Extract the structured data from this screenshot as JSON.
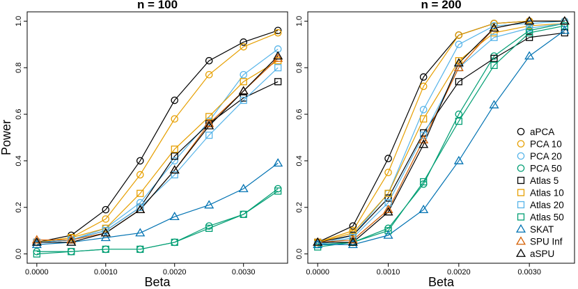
{
  "chart_data": [
    {
      "type": "line",
      "title": "n = 100",
      "xlabel": "Beta",
      "ylabel": "Power",
      "xlim": [
        0,
        0.0035
      ],
      "ylim": [
        0,
        1
      ],
      "x": [
        0,
        0.0005,
        0.001,
        0.0015,
        0.002,
        0.0025,
        0.003,
        0.0035
      ],
      "xtick_values": [
        0,
        0.001,
        0.002,
        0.003
      ],
      "xtick_labels": [
        "0.0000",
        "0.0010",
        "0.0020",
        "0.0030"
      ],
      "ytick_values": [
        0,
        0.2,
        0.4,
        0.6,
        0.8,
        1.0
      ],
      "ytick_labels": [
        "0.0",
        "0.2",
        "0.4",
        "0.6",
        "0.8",
        "1.0"
      ],
      "series": [
        {
          "name": "aPCA",
          "color": "#000000",
          "marker": "circle",
          "values": [
            0.05,
            0.08,
            0.19,
            0.4,
            0.66,
            0.83,
            0.91,
            0.96
          ]
        },
        {
          "name": "PCA 10",
          "color": "#E69F00",
          "marker": "circle",
          "values": [
            0.05,
            0.07,
            0.15,
            0.34,
            0.58,
            0.77,
            0.89,
            0.95
          ]
        },
        {
          "name": "PCA 20",
          "color": "#56B4E9",
          "marker": "circle",
          "values": [
            0.05,
            0.06,
            0.11,
            0.22,
            0.4,
            0.57,
            0.77,
            0.88
          ]
        },
        {
          "name": "PCA 50",
          "color": "#009E73",
          "marker": "circle",
          "values": [
            0.01,
            0.01,
            0.02,
            0.02,
            0.05,
            0.12,
            0.17,
            0.28
          ]
        },
        {
          "name": "Atlas 5",
          "color": "#000000",
          "marker": "square",
          "values": [
            0.05,
            0.06,
            0.1,
            0.2,
            0.42,
            0.56,
            0.67,
            0.74
          ]
        },
        {
          "name": "Atlas 10",
          "color": "#E69F00",
          "marker": "square",
          "values": [
            0.05,
            0.07,
            0.11,
            0.26,
            0.45,
            0.59,
            0.74,
            0.83
          ]
        },
        {
          "name": "Atlas 20",
          "color": "#56B4E9",
          "marker": "square",
          "values": [
            0.05,
            0.06,
            0.1,
            0.2,
            0.34,
            0.51,
            0.66,
            0.8
          ]
        },
        {
          "name": "Atlas 50",
          "color": "#009E73",
          "marker": "square",
          "values": [
            0.0,
            0.01,
            0.02,
            0.02,
            0.05,
            0.11,
            0.17,
            0.27
          ]
        },
        {
          "name": "SKAT",
          "color": "#0072B2",
          "marker": "triangle",
          "values": [
            0.04,
            0.05,
            0.07,
            0.09,
            0.16,
            0.21,
            0.28,
            0.39
          ]
        },
        {
          "name": "SPU Inf",
          "color": "#D55E00",
          "marker": "triangle",
          "values": [
            0.06,
            0.06,
            0.09,
            0.19,
            0.36,
            0.56,
            0.7,
            0.84
          ]
        },
        {
          "name": "aSPU",
          "color": "#000000",
          "marker": "triangle",
          "values": [
            0.05,
            0.05,
            0.09,
            0.19,
            0.36,
            0.55,
            0.7,
            0.85
          ]
        }
      ]
    },
    {
      "type": "line",
      "title": "n = 200",
      "xlabel": "Beta",
      "ylabel": "",
      "xlim": [
        0,
        0.0035
      ],
      "ylim": [
        0,
        1
      ],
      "x": [
        0,
        0.0005,
        0.001,
        0.0015,
        0.002,
        0.0025,
        0.003,
        0.0035
      ],
      "xtick_values": [
        0,
        0.001,
        0.002,
        0.003
      ],
      "xtick_labels": [
        "0.0000",
        "0.0010",
        "0.0020",
        "0.0030"
      ],
      "ytick_values": [
        0,
        0.2,
        0.4,
        0.6,
        0.8,
        1.0
      ],
      "ytick_labels": [
        "0.0",
        "0.2",
        "0.4",
        "0.6",
        "0.8",
        "1.0"
      ],
      "legend_position": "bottom-right",
      "series": [
        {
          "name": "aPCA",
          "color": "#000000",
          "marker": "circle",
          "values": [
            0.05,
            0.12,
            0.41,
            0.76,
            0.94,
            0.99,
            1.0,
            1.0
          ]
        },
        {
          "name": "PCA 10",
          "color": "#E69F00",
          "marker": "circle",
          "values": [
            0.05,
            0.1,
            0.35,
            0.72,
            0.94,
            0.99,
            1.0,
            1.0
          ]
        },
        {
          "name": "PCA 20",
          "color": "#56B4E9",
          "marker": "circle",
          "values": [
            0.04,
            0.08,
            0.26,
            0.62,
            0.9,
            0.98,
            0.99,
            1.0
          ]
        },
        {
          "name": "PCA 50",
          "color": "#009E73",
          "marker": "circle",
          "values": [
            0.04,
            0.05,
            0.11,
            0.3,
            0.6,
            0.85,
            0.96,
            0.99
          ]
        },
        {
          "name": "Atlas 5",
          "color": "#000000",
          "marker": "square",
          "values": [
            0.05,
            0.08,
            0.24,
            0.52,
            0.74,
            0.84,
            0.93,
            0.95
          ]
        },
        {
          "name": "Atlas 10",
          "color": "#E69F00",
          "marker": "square",
          "values": [
            0.05,
            0.09,
            0.26,
            0.58,
            0.83,
            0.95,
            0.98,
            0.99
          ]
        },
        {
          "name": "Atlas 20",
          "color": "#56B4E9",
          "marker": "square",
          "values": [
            0.04,
            0.07,
            0.22,
            0.51,
            0.8,
            0.93,
            0.97,
            0.99
          ]
        },
        {
          "name": "Atlas 50",
          "color": "#009E73",
          "marker": "square",
          "values": [
            0.03,
            0.05,
            0.1,
            0.31,
            0.57,
            0.81,
            0.95,
            0.98
          ]
        },
        {
          "name": "SKAT",
          "color": "#0072B2",
          "marker": "triangle",
          "values": [
            0.04,
            0.04,
            0.08,
            0.19,
            0.4,
            0.64,
            0.85,
            0.96
          ]
        },
        {
          "name": "SPU Inf",
          "color": "#D55E00",
          "marker": "triangle",
          "values": [
            0.05,
            0.06,
            0.19,
            0.49,
            0.8,
            0.97,
            1.0,
            1.0
          ]
        },
        {
          "name": "aSPU",
          "color": "#000000",
          "marker": "triangle",
          "values": [
            0.05,
            0.05,
            0.18,
            0.47,
            0.82,
            0.97,
            1.0,
            1.0
          ]
        }
      ]
    }
  ]
}
